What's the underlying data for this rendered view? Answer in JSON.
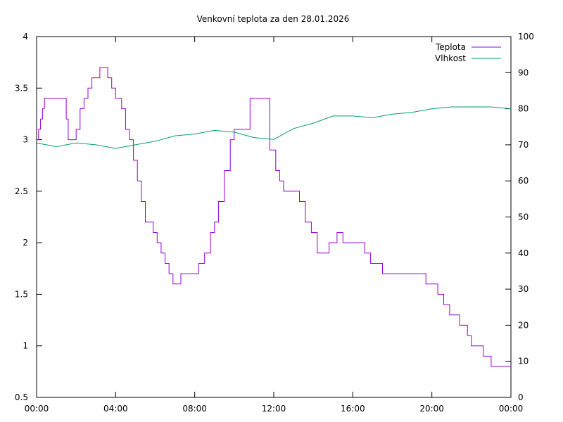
{
  "chart_data": {
    "type": "line",
    "title": "Venkovní teplota za den 28.01.2026",
    "x_ticks": [
      "00:00",
      "04:00",
      "08:00",
      "12:00",
      "16:00",
      "20:00",
      "00:00"
    ],
    "x_range_hours": [
      0,
      24
    ],
    "y_left": {
      "range": [
        0.5,
        4
      ],
      "ticks": [
        "0.5",
        "1",
        "1.5",
        "2",
        "2.5",
        "3",
        "3.5",
        "4"
      ]
    },
    "y_right": {
      "range": [
        0,
        100
      ],
      "ticks": [
        "0",
        "10",
        "20",
        "30",
        "40",
        "50",
        "60",
        "70",
        "80",
        "90",
        "100"
      ]
    },
    "legend_position": "top-right",
    "grid": false,
    "series": [
      {
        "name": "Teplota",
        "axis": "left",
        "color": "#9400d3",
        "x_hours": [
          0,
          0.1,
          0.2,
          0.3,
          0.4,
          0.5,
          0.6,
          1.4,
          1.5,
          1.6,
          1.8,
          2.0,
          2.2,
          2.4,
          2.6,
          2.8,
          3.0,
          3.2,
          3.4,
          3.6,
          3.8,
          4.0,
          4.3,
          4.5,
          4.7,
          4.9,
          5.1,
          5.3,
          5.5,
          5.7,
          5.9,
          6.1,
          6.3,
          6.5,
          6.7,
          6.9,
          7.1,
          7.3,
          7.5,
          7.7,
          7.9,
          8.2,
          8.5,
          8.8,
          9.0,
          9.2,
          9.5,
          9.8,
          10.0,
          10.2,
          10.5,
          10.8,
          11.0,
          11.2,
          11.5,
          11.8,
          12.1,
          12.3,
          12.5,
          12.7,
          13.0,
          13.3,
          13.6,
          13.9,
          14.2,
          14.5,
          14.8,
          15.0,
          15.2,
          15.5,
          15.8,
          16.0,
          16.3,
          16.6,
          16.9,
          17.2,
          17.5,
          17.8,
          18.0,
          18.2,
          18.5,
          18.8,
          19.1,
          19.4,
          19.7,
          20.0,
          20.3,
          20.6,
          20.9,
          21.2,
          21.4,
          21.6,
          21.8,
          22.0,
          22.2,
          22.4,
          22.6,
          22.8,
          23.0,
          23.2,
          23.4,
          23.6,
          23.8,
          24.0
        ],
        "values": [
          3.0,
          3.1,
          3.2,
          3.3,
          3.4,
          3.4,
          3.4,
          3.4,
          3.2,
          3.0,
          3.0,
          3.1,
          3.3,
          3.4,
          3.5,
          3.6,
          3.6,
          3.7,
          3.7,
          3.6,
          3.5,
          3.4,
          3.3,
          3.1,
          3.0,
          2.8,
          2.6,
          2.4,
          2.2,
          2.2,
          2.1,
          2.0,
          1.9,
          1.8,
          1.7,
          1.6,
          1.6,
          1.7,
          1.7,
          1.7,
          1.7,
          1.8,
          1.9,
          2.1,
          2.2,
          2.4,
          2.7,
          3.0,
          3.1,
          3.1,
          3.1,
          3.4,
          3.4,
          3.4,
          3.4,
          2.9,
          2.7,
          2.6,
          2.5,
          2.5,
          2.5,
          2.4,
          2.2,
          2.1,
          1.9,
          1.9,
          2.0,
          2.0,
          2.1,
          2.0,
          2.0,
          2.0,
          2.0,
          1.9,
          1.8,
          1.8,
          1.7,
          1.7,
          1.7,
          1.7,
          1.7,
          1.7,
          1.7,
          1.7,
          1.6,
          1.6,
          1.5,
          1.4,
          1.3,
          1.3,
          1.2,
          1.2,
          1.1,
          1.0,
          1.0,
          1.0,
          0.9,
          0.9,
          0.8,
          0.8,
          0.8,
          0.8,
          0.8,
          0.8
        ]
      },
      {
        "name": "Vlhkost",
        "axis": "right",
        "color": "#009e73",
        "x_hours": [
          0,
          1,
          2,
          3,
          4,
          5,
          6,
          7,
          8,
          9,
          10,
          11,
          12,
          13,
          14,
          15,
          16,
          17,
          18,
          19,
          20,
          21,
          22,
          23,
          24
        ],
        "values": [
          70.5,
          69.5,
          70.5,
          70,
          69,
          70,
          71,
          72.5,
          73,
          74,
          73.5,
          72,
          71.5,
          74.5,
          76,
          78,
          78,
          77.5,
          78.5,
          79,
          80,
          80.5,
          80.5,
          80.5,
          80
        ]
      }
    ]
  }
}
